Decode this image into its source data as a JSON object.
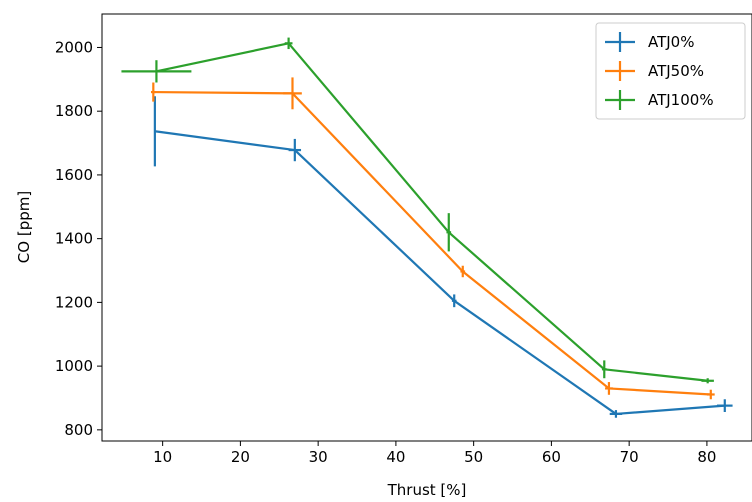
{
  "chart_data": {
    "type": "line",
    "title": "",
    "xlabel": "Thrust [%]",
    "ylabel": "CO [ppm]",
    "xlim": [
      2.2,
      85.8
    ],
    "ylim": [
      765,
      2105
    ],
    "xticks": [
      10,
      20,
      30,
      40,
      50,
      60,
      70,
      80
    ],
    "yticks": [
      800,
      1000,
      1200,
      1400,
      1600,
      1800,
      2000
    ],
    "grid": false,
    "legend_position": "top-right",
    "error_bars": true,
    "series": [
      {
        "name": "ATJ0%",
        "color": "#1f77b4",
        "points": [
          {
            "x": 9.0,
            "y": 1737,
            "xerr": 0.0,
            "yerr": 110
          },
          {
            "x": 27.0,
            "y": 1678,
            "xerr": 0.8,
            "yerr": 35
          },
          {
            "x": 47.5,
            "y": 1205,
            "xerr": 0.3,
            "yerr": 20
          },
          {
            "x": 68.3,
            "y": 850,
            "xerr": 0.8,
            "yerr": 12
          },
          {
            "x": 82.3,
            "y": 876,
            "xerr": 1.0,
            "yerr": 20
          }
        ]
      },
      {
        "name": "ATJ50%",
        "color": "#ff7f0e",
        "points": [
          {
            "x": 8.8,
            "y": 1860,
            "xerr": 0.3,
            "yerr": 30
          },
          {
            "x": 26.7,
            "y": 1856,
            "xerr": 1.2,
            "yerr": 50
          },
          {
            "x": 48.6,
            "y": 1297,
            "xerr": 0.3,
            "yerr": 18
          },
          {
            "x": 67.4,
            "y": 930,
            "xerr": 0.5,
            "yerr": 20
          },
          {
            "x": 80.5,
            "y": 911,
            "xerr": 0.5,
            "yerr": 15
          }
        ]
      },
      {
        "name": "ATJ100%",
        "color": "#2ca02c",
        "points": [
          {
            "x": 9.2,
            "y": 1925,
            "xerr": 4.5,
            "yerr": 35
          },
          {
            "x": 26.2,
            "y": 2013,
            "xerr": 0.5,
            "yerr": 18
          },
          {
            "x": 46.8,
            "y": 1420,
            "xerr": 0.3,
            "yerr": 60
          },
          {
            "x": 66.8,
            "y": 990,
            "xerr": 0.3,
            "yerr": 28
          },
          {
            "x": 80.1,
            "y": 954,
            "xerr": 0.8,
            "yerr": 8
          }
        ]
      }
    ]
  }
}
